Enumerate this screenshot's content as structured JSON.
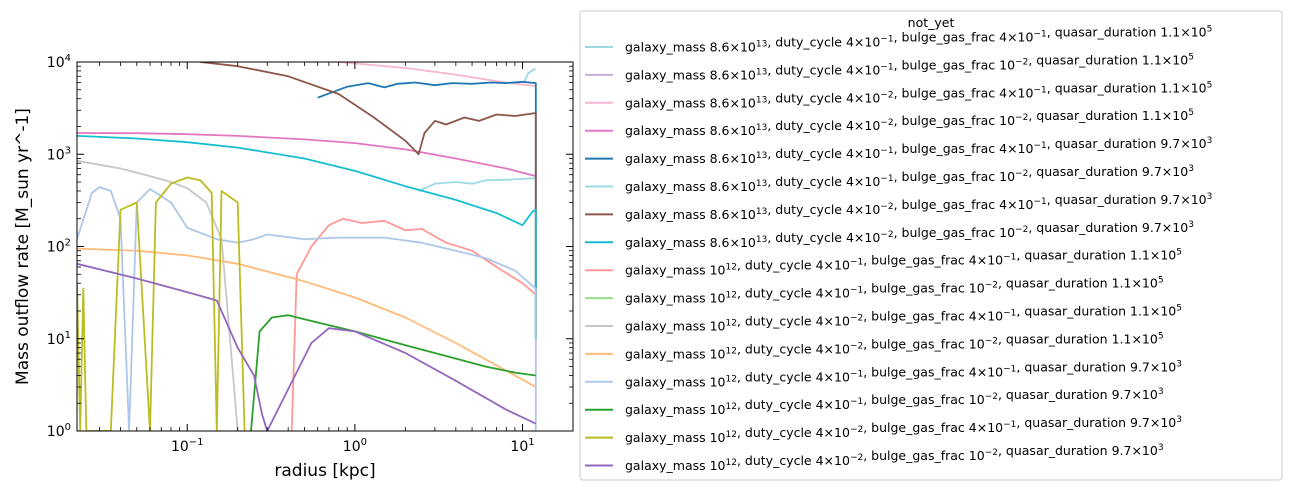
{
  "chart_data": {
    "type": "line",
    "xscale": "log",
    "yscale": "log",
    "xlim": [
      0.022,
      20
    ],
    "ylim": [
      1,
      10000
    ],
    "xlabel": "radius [kpc]",
    "ylabel": "Mass outflow rate [M_sun yr^-1]",
    "x_ticks": [
      {
        "value": 0.1,
        "label": "10^-1"
      },
      {
        "value": 1,
        "label": "10^0"
      },
      {
        "value": 10,
        "label": "10^1"
      }
    ],
    "y_ticks": [
      {
        "value": 1,
        "label": "10^0"
      },
      {
        "value": 10,
        "label": "10^1"
      },
      {
        "value": 100,
        "label": "10^2"
      },
      {
        "value": 1000,
        "label": "10^3"
      },
      {
        "value": 10000,
        "label": "10^4"
      }
    ],
    "legend": {
      "title": "not_yet",
      "placement": "outside-right"
    },
    "series": [
      {
        "name": "galaxy_mass 8.6×10^13, duty_cycle 4×10^-1, bulge_gas_frac 4×10^-1, quasar_duration 1.1×10^5",
        "color": "#9edae5",
        "points": [
          [
            10.2,
            6000
          ],
          [
            10.8,
            7500
          ],
          [
            11.5,
            8200
          ],
          [
            12,
            8400
          ]
        ]
      },
      {
        "name": "galaxy_mass 8.6×10^13, duty_cycle 4×10^-1, bulge_gas_frac 10^-2, quasar_duration 1.1×10^5",
        "color": "#c5b0d5",
        "points": []
      },
      {
        "name": "galaxy_mass 8.6×10^13, duty_cycle 4×10^-2, bulge_gas_frac 4×10^-1, quasar_duration 1.1×10^5",
        "color": "#f7b6d2",
        "points": [
          [
            0.8,
            10000
          ],
          [
            2,
            8600
          ],
          [
            4,
            7300
          ],
          [
            7,
            6200
          ],
          [
            10,
            5700
          ],
          [
            12,
            5500
          ]
        ]
      },
      {
        "name": "galaxy_mass 8.6×10^13, duty_cycle 4×10^-2, bulge_gas_frac 10^-2, quasar_duration 1.1×10^5",
        "color": "#e377c2",
        "points": [
          [
            0.022,
            1700
          ],
          [
            0.05,
            1690
          ],
          [
            0.1,
            1650
          ],
          [
            0.2,
            1580
          ],
          [
            0.5,
            1450
          ],
          [
            1,
            1320
          ],
          [
            2,
            1130
          ],
          [
            4,
            900
          ],
          [
            8,
            700
          ],
          [
            12,
            580
          ]
        ]
      },
      {
        "name": "galaxy_mass 8.6×10^13, duty_cycle 4×10^-1, bulge_gas_frac 4×10^-1, quasar_duration 9.7×10^3",
        "color": "#1f77b4",
        "points": [
          [
            0.6,
            4100
          ],
          [
            0.9,
            5400
          ],
          [
            1.2,
            5900
          ],
          [
            1.5,
            5300
          ],
          [
            1.8,
            5800
          ],
          [
            2.3,
            6000
          ],
          [
            3,
            5600
          ],
          [
            3.8,
            5900
          ],
          [
            5,
            5800
          ],
          [
            6.5,
            6000
          ],
          [
            8,
            5900
          ],
          [
            10,
            6100
          ],
          [
            12,
            5900
          ],
          [
            12,
            10
          ]
        ]
      },
      {
        "name": "galaxy_mass 8.6×10^13, duty_cycle 4×10^-1, bulge_gas_frac 10^-2, quasar_duration 9.7×10^3",
        "color": "#9edae5",
        "points": [
          [
            2.4,
            400
          ],
          [
            3,
            480
          ],
          [
            4,
            500
          ],
          [
            5,
            480
          ],
          [
            6,
            520
          ],
          [
            8,
            530
          ],
          [
            10,
            540
          ],
          [
            12,
            550
          ]
        ]
      },
      {
        "name": "galaxy_mass 8.6×10^13, duty_cycle 4×10^-2, bulge_gas_frac 4×10^-1, quasar_duration 9.7×10^3",
        "color": "#8c564b",
        "points": [
          [
            0.12,
            10000
          ],
          [
            0.2,
            9000
          ],
          [
            0.4,
            7000
          ],
          [
            0.8,
            4500
          ],
          [
            1.3,
            2500
          ],
          [
            2,
            1400
          ],
          [
            2.4,
            1000
          ],
          [
            2.6,
            1700
          ],
          [
            3,
            2300
          ],
          [
            3.5,
            2100
          ],
          [
            4.5,
            2500
          ],
          [
            5.5,
            2300
          ],
          [
            7,
            2700
          ],
          [
            9,
            2600
          ],
          [
            12,
            2800
          ],
          [
            12,
            10
          ]
        ]
      },
      {
        "name": "galaxy_mass 8.6×10^13, duty_cycle 4×10^-2, bulge_gas_frac 10^-2, quasar_duration 9.7×10^3",
        "color": "#17becf",
        "points": [
          [
            0.022,
            1580
          ],
          [
            0.05,
            1480
          ],
          [
            0.1,
            1350
          ],
          [
            0.2,
            1180
          ],
          [
            0.5,
            900
          ],
          [
            1,
            660
          ],
          [
            2,
            450
          ],
          [
            4,
            320
          ],
          [
            7,
            230
          ],
          [
            10,
            170
          ],
          [
            11.5,
            240
          ],
          [
            12,
            250
          ],
          [
            12,
            10
          ]
        ]
      },
      {
        "name": "galaxy_mass 10^12, duty_cycle 4×10^-1, bulge_gas_frac 4×10^-1, quasar_duration 1.1×10^5",
        "color": "#ff9896",
        "points": [
          [
            0.42,
            1
          ],
          [
            0.45,
            50
          ],
          [
            0.55,
            100
          ],
          [
            0.7,
            170
          ],
          [
            0.85,
            200
          ],
          [
            1.1,
            180
          ],
          [
            1.5,
            190
          ],
          [
            2,
            150
          ],
          [
            2.5,
            155
          ],
          [
            3.5,
            110
          ],
          [
            5,
            90
          ],
          [
            7,
            60
          ],
          [
            10,
            40
          ],
          [
            12,
            30
          ]
        ]
      },
      {
        "name": "galaxy_mass 10^12, duty_cycle 4×10^-1, bulge_gas_frac 10^-2, quasar_duration 1.1×10^5",
        "color": "#98df8a",
        "points": []
      },
      {
        "name": "galaxy_mass 10^12, duty_cycle 4×10^-2, bulge_gas_frac 4×10^-1, quasar_duration 1.1×10^5",
        "color": "#c7c7c7",
        "points": [
          [
            0.022,
            850
          ],
          [
            0.04,
            700
          ],
          [
            0.06,
            580
          ],
          [
            0.08,
            500
          ],
          [
            0.1,
            430
          ],
          [
            0.13,
            300
          ],
          [
            0.16,
            120
          ],
          [
            0.18,
            10
          ],
          [
            0.2,
            1
          ]
        ]
      },
      {
        "name": "galaxy_mass 10^12, duty_cycle 4×10^-2, bulge_gas_frac 10^-2, quasar_duration 1.1×10^5",
        "color": "#ffbb78",
        "points": [
          [
            0.022,
            95
          ],
          [
            0.05,
            90
          ],
          [
            0.1,
            80
          ],
          [
            0.2,
            65
          ],
          [
            0.5,
            42
          ],
          [
            1,
            28
          ],
          [
            2,
            17
          ],
          [
            4,
            9
          ],
          [
            8,
            4.5
          ],
          [
            12,
            3
          ]
        ]
      },
      {
        "name": "galaxy_mass 10^12, duty_cycle 4×10^-1, bulge_gas_frac 4×10^-1, quasar_duration 9.7×10^3",
        "color": "#aec7e8",
        "points": [
          [
            0.022,
            120
          ],
          [
            0.027,
            380
          ],
          [
            0.03,
            440
          ],
          [
            0.035,
            400
          ],
          [
            0.04,
            200
          ],
          [
            0.045,
            1
          ],
          [
            0.05,
            300
          ],
          [
            0.06,
            420
          ],
          [
            0.08,
            300
          ],
          [
            0.1,
            160
          ],
          [
            0.15,
            120
          ],
          [
            0.2,
            110
          ],
          [
            0.25,
            120
          ],
          [
            0.3,
            135
          ],
          [
            0.5,
            120
          ],
          [
            0.8,
            125
          ],
          [
            1.5,
            125
          ],
          [
            2.5,
            110
          ],
          [
            4,
            90
          ],
          [
            6,
            75
          ],
          [
            9,
            55
          ],
          [
            12,
            35
          ],
          [
            12,
            1
          ]
        ]
      },
      {
        "name": "galaxy_mass 10^12, duty_cycle 4×10^-1, bulge_gas_frac 10^-2, quasar_duration 9.7×10^3",
        "color": "#2ca02c",
        "points": [
          [
            0.24,
            1
          ],
          [
            0.27,
            12
          ],
          [
            0.32,
            17
          ],
          [
            0.4,
            18
          ],
          [
            0.6,
            15
          ],
          [
            1,
            12
          ],
          [
            2,
            8.5
          ],
          [
            3.5,
            6.5
          ],
          [
            6,
            5
          ],
          [
            9,
            4.3
          ],
          [
            12,
            4
          ]
        ]
      },
      {
        "name": "galaxy_mass 10^12, duty_cycle 4×10^-2, bulge_gas_frac 4×10^-1, quasar_duration 9.7×10^3",
        "color": "#bcbd22",
        "points": [
          [
            0.022,
            40
          ],
          [
            0.023,
            1
          ],
          [
            0.024,
            35
          ],
          [
            0.025,
            1
          ],
          [
            0.035,
            1
          ],
          [
            0.04,
            250
          ],
          [
            0.05,
            300
          ],
          [
            0.06,
            1
          ],
          [
            0.065,
            300
          ],
          [
            0.08,
            480
          ],
          [
            0.1,
            560
          ],
          [
            0.12,
            520
          ],
          [
            0.14,
            380
          ],
          [
            0.15,
            1
          ],
          [
            0.16,
            400
          ],
          [
            0.2,
            300
          ],
          [
            0.22,
            1
          ]
        ]
      },
      {
        "name": "galaxy_mass 10^12, duty_cycle 4×10^-2, bulge_gas_frac 10^-2, quasar_duration 9.7×10^3",
        "color": "#9467bd",
        "points": [
          [
            0.022,
            65
          ],
          [
            0.05,
            45
          ],
          [
            0.1,
            32
          ],
          [
            0.15,
            26
          ],
          [
            0.2,
            8
          ],
          [
            0.25,
            4
          ],
          [
            0.28,
            1.5
          ],
          [
            0.3,
            1
          ],
          [
            0.55,
            9
          ],
          [
            0.7,
            13
          ],
          [
            1,
            12
          ],
          [
            2,
            7
          ],
          [
            4,
            3.5
          ],
          [
            8,
            1.7
          ],
          [
            12,
            1.2
          ]
        ]
      }
    ]
  }
}
